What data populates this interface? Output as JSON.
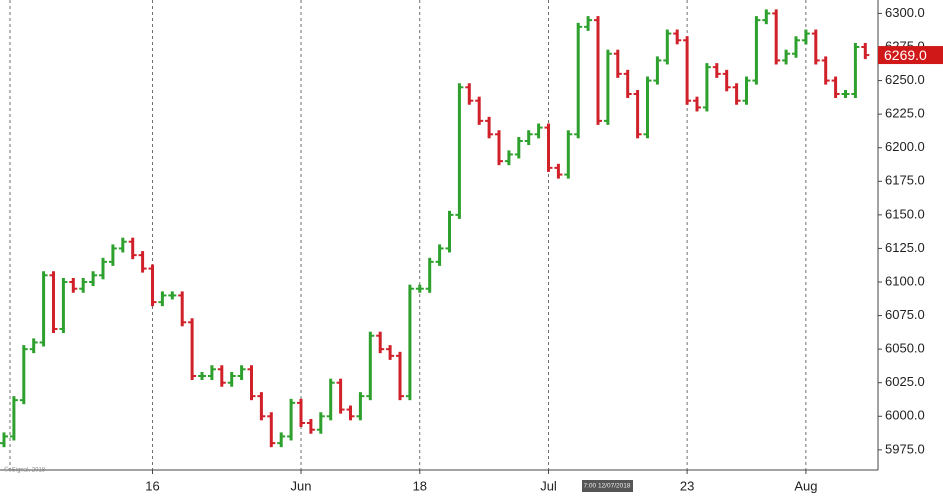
{
  "chart_data": {
    "type": "ohlc",
    "categories": [
      null,
      null,
      null,
      null,
      null,
      null,
      null,
      null,
      null,
      null,
      null,
      null,
      null,
      null,
      null,
      "16",
      null,
      null,
      null,
      null,
      null,
      null,
      null,
      null,
      null,
      null,
      null,
      null,
      null,
      null,
      "Jun",
      null,
      null,
      null,
      null,
      null,
      null,
      null,
      null,
      null,
      null,
      null,
      "18",
      null,
      null,
      null,
      null,
      null,
      null,
      null,
      null,
      null,
      null,
      null,
      null,
      "Jul",
      null,
      null,
      null,
      null,
      null,
      null,
      null,
      null,
      null,
      null,
      null,
      null,
      null,
      "23",
      null,
      null,
      null,
      null,
      null,
      null,
      null,
      null,
      null,
      null,
      null,
      "Aug",
      null,
      null,
      null,
      null,
      null,
      null
    ],
    "open": [
      5980,
      5985,
      6012,
      6050,
      6055,
      6105,
      6065,
      6100,
      6095,
      6100,
      6105,
      6115,
      6125,
      6130,
      6120,
      6110,
      6085,
      6090,
      6090,
      6070,
      6030,
      6030,
      6035,
      6025,
      6030,
      6035,
      6015,
      6000,
      5980,
      5985,
      6010,
      5995,
      5990,
      6000,
      6025,
      6005,
      6000,
      6015,
      6060,
      6050,
      6045,
      6015,
      6095,
      6095,
      6115,
      6125,
      6150,
      6245,
      6235,
      6220,
      6210,
      6190,
      6195,
      6205,
      6210,
      6215,
      6185,
      6180,
      6210,
      6290,
      6295,
      6220,
      6270,
      6255,
      6240,
      6210,
      6250,
      6265,
      6285,
      6280,
      6235,
      6230,
      6260,
      6255,
      6245,
      6235,
      6250,
      6295,
      6300,
      6265,
      6270,
      6280,
      6285,
      6265,
      6250,
      6240,
      6240,
      6275
    ],
    "high": [
      5988,
      6015,
      6053,
      6058,
      6108,
      6108,
      6103,
      6103,
      6103,
      6108,
      6118,
      6128,
      6133,
      6133,
      6123,
      6113,
      6093,
      6093,
      6093,
      6073,
      6033,
      6038,
      6038,
      6033,
      6038,
      6038,
      6018,
      6003,
      5988,
      6013,
      6013,
      5998,
      6003,
      6028,
      6028,
      6008,
      6018,
      6063,
      6063,
      6053,
      6048,
      6098,
      6098,
      6118,
      6128,
      6153,
      6248,
      6248,
      6238,
      6223,
      6213,
      6198,
      6208,
      6213,
      6218,
      6218,
      6188,
      6213,
      6293,
      6298,
      6298,
      6273,
      6273,
      6258,
      6243,
      6253,
      6268,
      6288,
      6288,
      6283,
      6238,
      6263,
      6263,
      6258,
      6248,
      6253,
      6298,
      6303,
      6303,
      6273,
      6283,
      6288,
      6288,
      6268,
      6253,
      6243,
      6278,
      6278
    ],
    "low": [
      5977,
      5982,
      6009,
      6047,
      6052,
      6062,
      6062,
      6092,
      6092,
      6097,
      6102,
      6112,
      6122,
      6117,
      6107,
      6082,
      6082,
      6087,
      6067,
      6027,
      6027,
      6027,
      6022,
      6022,
      6027,
      6012,
      5997,
      5977,
      5977,
      5982,
      5992,
      5987,
      5987,
      5997,
      6002,
      5997,
      5997,
      6012,
      6047,
      6042,
      6012,
      6012,
      6092,
      6092,
      6112,
      6122,
      6147,
      6232,
      6217,
      6207,
      6187,
      6187,
      6192,
      6202,
      6207,
      6182,
      6177,
      6177,
      6207,
      6287,
      6217,
      6217,
      6252,
      6237,
      6207,
      6207,
      6247,
      6262,
      6277,
      6232,
      6227,
      6227,
      6252,
      6242,
      6232,
      6232,
      6247,
      6292,
      6262,
      6262,
      6267,
      6277,
      6262,
      6247,
      6237,
      6237,
      6237,
      6266
    ],
    "close": [
      5985,
      6012,
      6050,
      6055,
      6105,
      6065,
      6100,
      6095,
      6100,
      6105,
      6115,
      6125,
      6130,
      6120,
      6110,
      6085,
      6090,
      6090,
      6070,
      6030,
      6030,
      6035,
      6025,
      6030,
      6035,
      6015,
      6000,
      5980,
      5985,
      6010,
      5995,
      5990,
      6000,
      6025,
      6005,
      6000,
      6015,
      6060,
      6050,
      6045,
      6015,
      6095,
      6095,
      6115,
      6125,
      6150,
      6245,
      6235,
      6220,
      6210,
      6190,
      6195,
      6205,
      6210,
      6215,
      6185,
      6180,
      6210,
      6290,
      6295,
      6220,
      6270,
      6255,
      6240,
      6210,
      6250,
      6265,
      6285,
      6280,
      6235,
      6230,
      6260,
      6255,
      6245,
      6235,
      6250,
      6295,
      6300,
      6265,
      6270,
      6280,
      6285,
      6265,
      6250,
      6240,
      6240,
      6275,
      6269
    ],
    "up_color": "#2ea02e",
    "down_color": "#d0202a",
    "ylim": [
      5960,
      6310
    ],
    "yticks": [
      {
        "value": 5975,
        "label": "5975.0"
      },
      {
        "value": 6000,
        "label": "6000.0"
      },
      {
        "value": 6025,
        "label": "6025.0"
      },
      {
        "value": 6050,
        "label": "6050.0"
      },
      {
        "value": 6075,
        "label": "6075.0"
      },
      {
        "value": 6100,
        "label": "6100.0"
      },
      {
        "value": 6125,
        "label": "6125.0"
      },
      {
        "value": 6150,
        "label": "6150.0"
      },
      {
        "value": 6175,
        "label": "6175.0"
      },
      {
        "value": 6200,
        "label": "6200.0"
      },
      {
        "value": 6225,
        "label": "6225.0"
      },
      {
        "value": 6250,
        "label": "6250.0"
      },
      {
        "value": 6275,
        "label": "6275.0"
      },
      {
        "value": 6300,
        "label": "6300.0"
      }
    ],
    "last_price": {
      "value": 6269,
      "label": "6269.0"
    },
    "crosshair_label": "7:00 12/07/2018",
    "watermark": "©eSignal, 2018",
    "grid": true
  }
}
